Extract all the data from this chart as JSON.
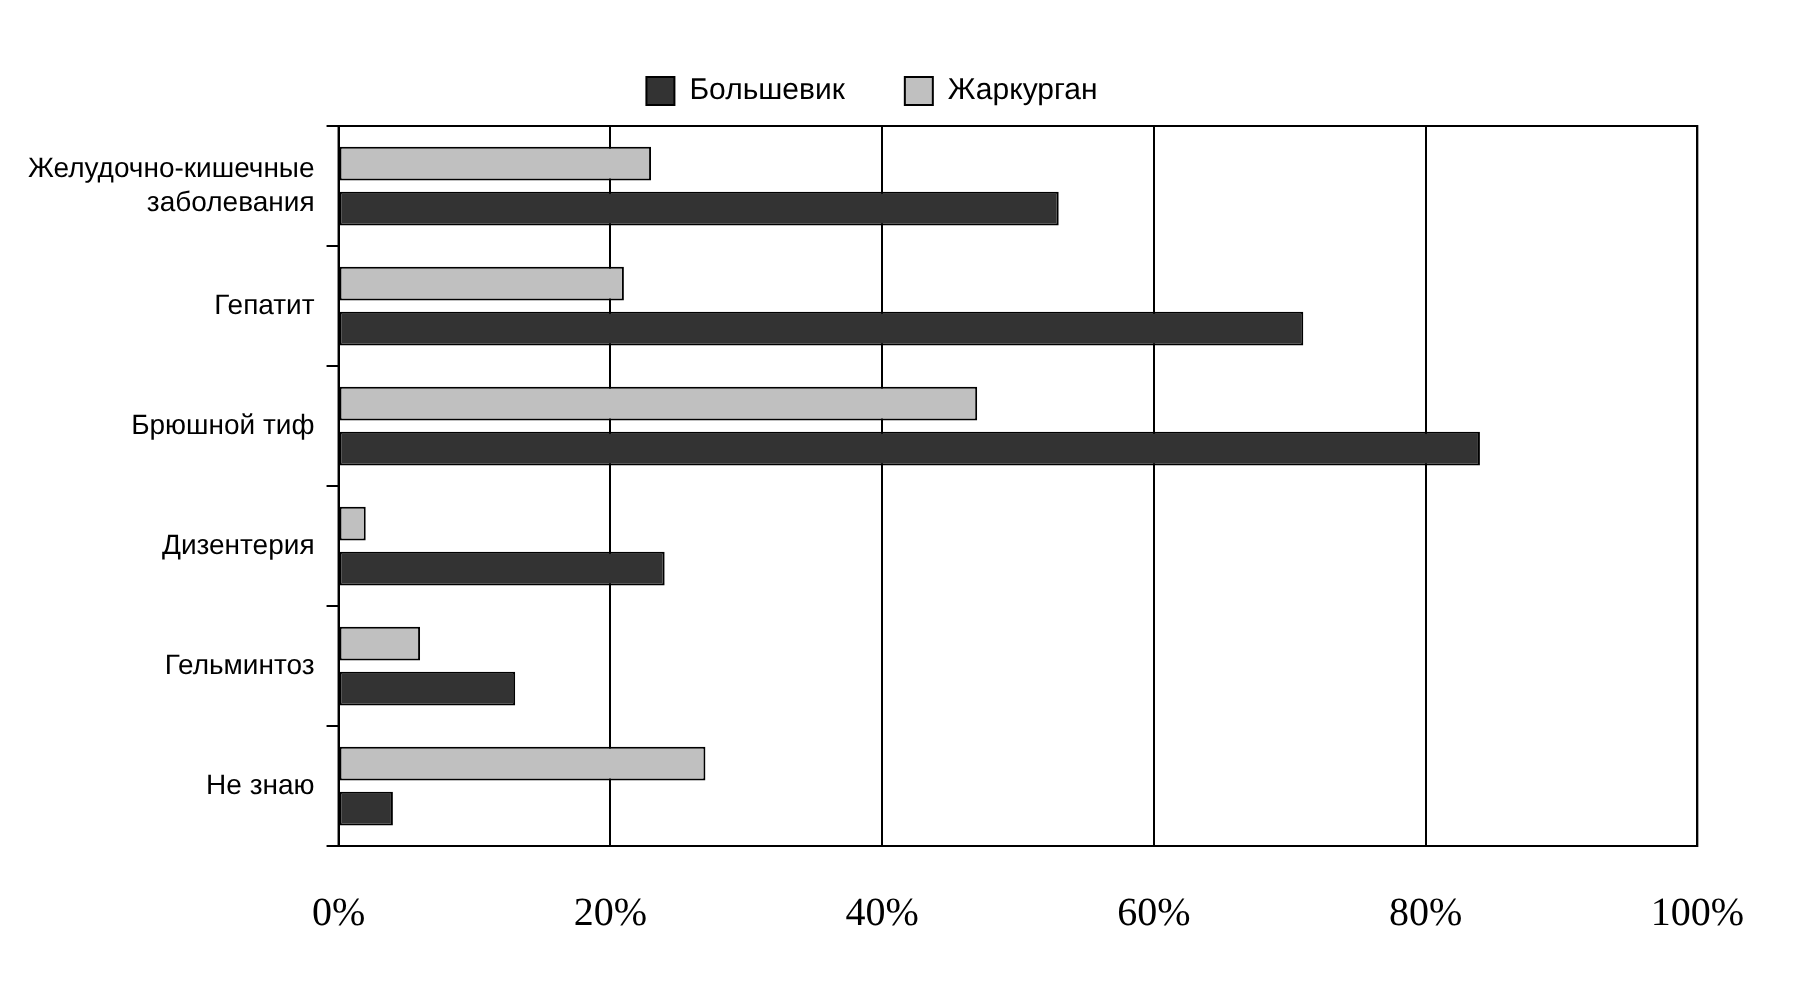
{
  "chart_data": {
    "type": "bar",
    "orientation": "horizontal",
    "categories": [
      "Желудочно-кишечные заболевания",
      "Гепатит",
      "Брюшной тиф",
      "Дизентерия",
      "Гельминтоз",
      "Не знаю"
    ],
    "series": [
      {
        "name": "Большевик",
        "color": "#333333",
        "values": [
          53,
          71,
          84,
          24,
          13,
          4
        ]
      },
      {
        "name": "Жаркурган",
        "color": "#c0c0c0",
        "values": [
          23,
          21,
          47,
          2,
          6,
          27
        ]
      }
    ],
    "xlim": [
      0,
      100
    ],
    "xticks": [
      {
        "value": 0,
        "label": "0%"
      },
      {
        "value": 20,
        "label": "20%"
      },
      {
        "value": 40,
        "label": "40%"
      },
      {
        "value": 60,
        "label": "60%"
      },
      {
        "value": 80,
        "label": "80%"
      },
      {
        "value": 100,
        "label": "100%"
      }
    ],
    "grid": "x",
    "legend": "top"
  }
}
